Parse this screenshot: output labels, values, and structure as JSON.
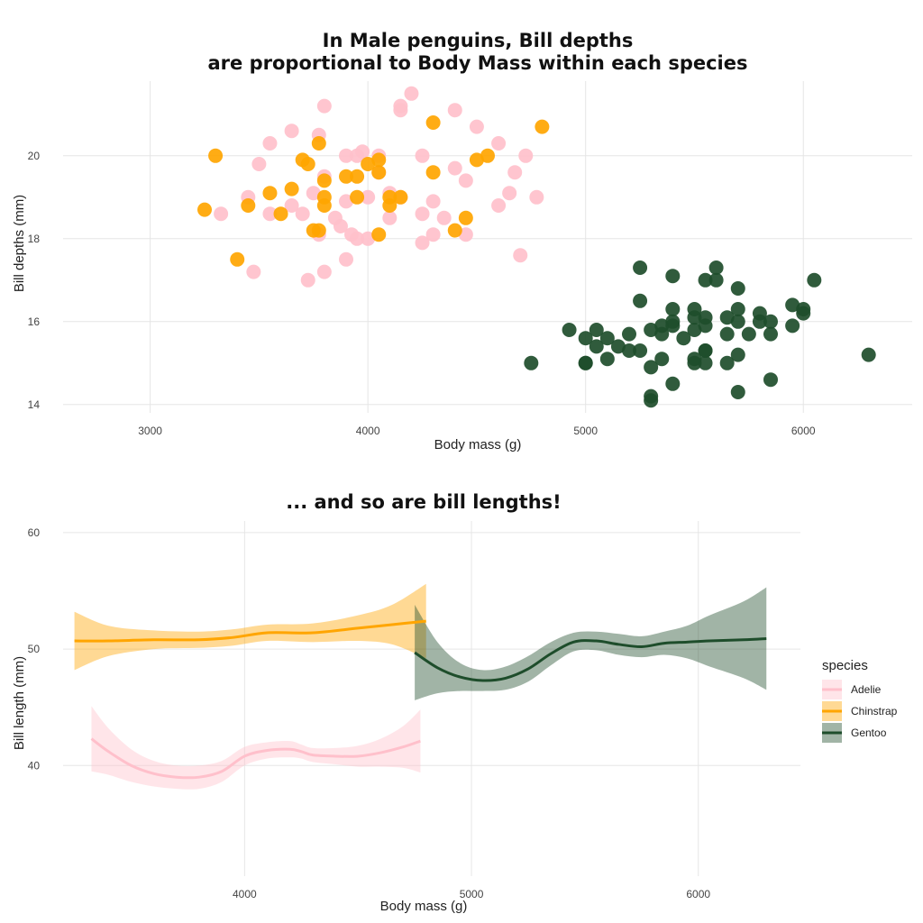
{
  "chart_data": [
    {
      "type": "scatter",
      "title_lines": [
        "In Male penguins, Bill depths",
        "are proportional to Body Mass within each species"
      ],
      "xlabel": "Body mass (g)",
      "ylabel": "Bill depths (mm)",
      "xlim": [
        2600,
        6500
      ],
      "ylim": [
        13.8,
        21.8
      ],
      "x_ticks": [
        3000,
        4000,
        5000,
        6000
      ],
      "y_ticks": [
        14,
        16,
        18,
        20
      ],
      "grid": true,
      "legend": "none",
      "series": [
        {
          "color": "#FFC0CB",
          "points": [
            [
              3325,
              18.6
            ],
            [
              3450,
              19.0
            ],
            [
              3475,
              17.2
            ],
            [
              3500,
              19.8
            ],
            [
              3550,
              20.3
            ],
            [
              3550,
              18.6
            ],
            [
              3650,
              20.6
            ],
            [
              3650,
              18.8
            ],
            [
              3700,
              18.6
            ],
            [
              3725,
              17.0
            ],
            [
              3750,
              19.1
            ],
            [
              3775,
              20.5
            ],
            [
              3775,
              18.1
            ],
            [
              3800,
              21.2
            ],
            [
              3800,
              17.2
            ],
            [
              3800,
              19.5
            ],
            [
              3850,
              18.5
            ],
            [
              3875,
              18.3
            ],
            [
              3900,
              20.0
            ],
            [
              3900,
              18.9
            ],
            [
              3900,
              17.5
            ],
            [
              3925,
              18.1
            ],
            [
              3950,
              20.0
            ],
            [
              3950,
              18.0
            ],
            [
              3975,
              20.1
            ],
            [
              4000,
              19.0
            ],
            [
              4000,
              18.0
            ],
            [
              4050,
              20.0
            ],
            [
              4050,
              19.6
            ],
            [
              4100,
              19.1
            ],
            [
              4100,
              18.5
            ],
            [
              4150,
              19.0
            ],
            [
              4150,
              21.2
            ],
            [
              4150,
              21.1
            ],
            [
              4200,
              21.5
            ],
            [
              4250,
              20.0
            ],
            [
              4250,
              18.6
            ],
            [
              4250,
              17.9
            ],
            [
              4300,
              18.9
            ],
            [
              4300,
              18.1
            ],
            [
              4350,
              18.5
            ],
            [
              4400,
              21.1
            ],
            [
              4400,
              19.7
            ],
            [
              4450,
              19.4
            ],
            [
              4450,
              18.1
            ],
            [
              4500,
              20.7
            ],
            [
              4600,
              20.3
            ],
            [
              4600,
              18.8
            ],
            [
              4650,
              19.1
            ],
            [
              4675,
              19.6
            ],
            [
              4700,
              17.6
            ],
            [
              4725,
              20.0
            ],
            [
              4775,
              19.0
            ]
          ]
        },
        {
          "color": "#FFA500",
          "points": [
            [
              3250,
              18.7
            ],
            [
              3300,
              20.0
            ],
            [
              3400,
              17.5
            ],
            [
              3450,
              18.8
            ],
            [
              3550,
              19.1
            ],
            [
              3600,
              18.6
            ],
            [
              3650,
              19.2
            ],
            [
              3700,
              19.9
            ],
            [
              3725,
              19.8
            ],
            [
              3750,
              18.2
            ],
            [
              3775,
              20.3
            ],
            [
              3775,
              18.2
            ],
            [
              3800,
              19.4
            ],
            [
              3800,
              19.0
            ],
            [
              3800,
              18.8
            ],
            [
              3900,
              19.5
            ],
            [
              3950,
              19.5
            ],
            [
              3950,
              19.0
            ],
            [
              4000,
              19.8
            ],
            [
              4050,
              19.9
            ],
            [
              4050,
              19.6
            ],
            [
              4050,
              18.1
            ],
            [
              4100,
              19.0
            ],
            [
              4100,
              18.8
            ],
            [
              4150,
              19.0
            ],
            [
              4300,
              20.8
            ],
            [
              4300,
              19.6
            ],
            [
              4400,
              18.2
            ],
            [
              4450,
              18.5
            ],
            [
              4500,
              19.9
            ],
            [
              4550,
              20.0
            ],
            [
              4800,
              20.7
            ]
          ]
        },
        {
          "color": "#1E4D2B",
          "points": [
            [
              4750,
              15.0
            ],
            [
              4925,
              15.8
            ],
            [
              5000,
              15.0
            ],
            [
              5000,
              15.6
            ],
            [
              5000,
              15.0
            ],
            [
              5050,
              15.4
            ],
            [
              5050,
              15.8
            ],
            [
              5100,
              15.1
            ],
            [
              5100,
              15.6
            ],
            [
              5150,
              15.4
            ],
            [
              5200,
              15.7
            ],
            [
              5200,
              15.3
            ],
            [
              5250,
              17.3
            ],
            [
              5250,
              16.5
            ],
            [
              5250,
              15.3
            ],
            [
              5300,
              15.8
            ],
            [
              5300,
              14.9
            ],
            [
              5300,
              14.2
            ],
            [
              5300,
              14.1
            ],
            [
              5350,
              15.9
            ],
            [
              5350,
              15.1
            ],
            [
              5350,
              15.7
            ],
            [
              5400,
              17.1
            ],
            [
              5400,
              16.3
            ],
            [
              5400,
              16.0
            ],
            [
              5400,
              15.9
            ],
            [
              5400,
              14.5
            ],
            [
              5450,
              15.6
            ],
            [
              5500,
              16.3
            ],
            [
              5500,
              16.1
            ],
            [
              5500,
              15.8
            ],
            [
              5500,
              15.1
            ],
            [
              5500,
              15.0
            ],
            [
              5550,
              17.0
            ],
            [
              5550,
              16.1
            ],
            [
              5550,
              15.9
            ],
            [
              5550,
              15.3
            ],
            [
              5550,
              15.3
            ],
            [
              5550,
              15.0
            ],
            [
              5600,
              17.3
            ],
            [
              5600,
              17.0
            ],
            [
              5650,
              16.1
            ],
            [
              5650,
              15.7
            ],
            [
              5650,
              15.0
            ],
            [
              5700,
              16.8
            ],
            [
              5700,
              16.3
            ],
            [
              5700,
              16.0
            ],
            [
              5700,
              15.2
            ],
            [
              5700,
              14.3
            ],
            [
              5750,
              15.7
            ],
            [
              5800,
              16.2
            ],
            [
              5800,
              16.0
            ],
            [
              5850,
              16.0
            ],
            [
              5850,
              15.7
            ],
            [
              5850,
              14.6
            ],
            [
              5950,
              16.4
            ],
            [
              5950,
              15.9
            ],
            [
              6000,
              16.3
            ],
            [
              6000,
              16.2
            ],
            [
              6050,
              17.0
            ],
            [
              6300,
              15.2
            ]
          ]
        }
      ]
    },
    {
      "type": "line",
      "title_lines": [
        "... and so are bill lengths!"
      ],
      "xlabel": "Body mass (g)",
      "ylabel": "Bill length (mm)",
      "xlim": [
        3200,
        6450
      ],
      "ylim": [
        30.5,
        61
      ],
      "x_ticks": [
        4000,
        5000,
        6000
      ],
      "y_ticks": [
        40,
        50,
        60
      ],
      "grid": true,
      "legend": "right",
      "legend_title": "species",
      "series": [
        {
          "name": "Adelie",
          "color": "#FFC0CB",
          "x": [
            3325,
            3400,
            3500,
            3600,
            3700,
            3800,
            3900,
            4000,
            4100,
            4200,
            4250,
            4300,
            4400,
            4500,
            4600,
            4700,
            4775
          ],
          "y": [
            42.3,
            41.2,
            40.0,
            39.3,
            39.0,
            39.0,
            39.5,
            40.8,
            41.3,
            41.4,
            41.2,
            40.9,
            40.8,
            40.8,
            41.1,
            41.6,
            42.1
          ],
          "lower": [
            39.5,
            39.2,
            38.6,
            38.2,
            38.0,
            38.0,
            38.6,
            40.0,
            40.6,
            40.7,
            40.6,
            40.3,
            40.1,
            39.9,
            39.9,
            39.8,
            39.4
          ],
          "upper": [
            45.1,
            43.2,
            41.4,
            40.4,
            40.0,
            40.0,
            40.4,
            41.6,
            42.0,
            42.1,
            41.8,
            41.5,
            41.5,
            41.7,
            42.3,
            43.4,
            44.8
          ]
        },
        {
          "name": "Chinstrap",
          "color": "#FFA500",
          "x": [
            3250,
            3400,
            3600,
            3800,
            3950,
            4100,
            4300,
            4500,
            4650,
            4800
          ],
          "y": [
            50.7,
            50.7,
            50.8,
            50.8,
            51.0,
            51.4,
            51.4,
            51.8,
            52.1,
            52.4
          ],
          "lower": [
            48.2,
            49.4,
            50.0,
            50.1,
            50.3,
            50.7,
            50.6,
            50.7,
            50.4,
            49.2
          ],
          "upper": [
            53.2,
            52.0,
            51.6,
            51.5,
            51.7,
            52.1,
            52.2,
            52.9,
            53.8,
            55.6
          ]
        },
        {
          "name": "Gentoo",
          "color": "#1E4D2B",
          "x": [
            4750,
            4850,
            4950,
            5050,
            5150,
            5250,
            5350,
            5450,
            5550,
            5650,
            5750,
            5850,
            5950,
            6050,
            6200,
            6300
          ],
          "y": [
            49.7,
            48.4,
            47.6,
            47.3,
            47.5,
            48.3,
            49.6,
            50.6,
            50.7,
            50.4,
            50.2,
            50.5,
            50.6,
            50.7,
            50.8,
            50.9
          ],
          "lower": [
            45.6,
            46.2,
            46.4,
            46.4,
            46.5,
            47.2,
            48.6,
            49.8,
            49.9,
            49.5,
            49.3,
            49.5,
            49.2,
            48.5,
            47.5,
            46.5
          ],
          "upper": [
            53.8,
            50.6,
            48.8,
            48.2,
            48.5,
            49.4,
            50.6,
            51.4,
            51.5,
            51.3,
            51.1,
            51.5,
            52.0,
            52.9,
            54.1,
            55.3
          ]
        }
      ]
    }
  ]
}
